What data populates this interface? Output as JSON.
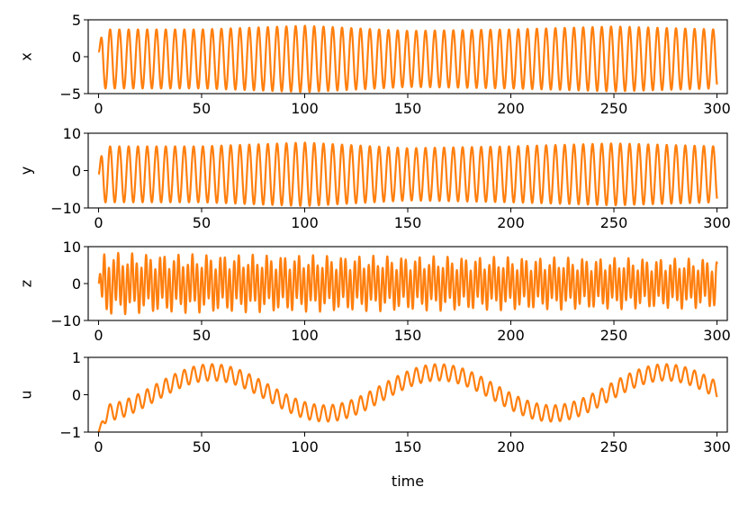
{
  "chart_data": [
    {
      "type": "line",
      "ylabel": "x",
      "xlabel": "",
      "xlim": [
        -5,
        305
      ],
      "ylim": [
        -5,
        5
      ],
      "xticks": [
        0,
        50,
        100,
        150,
        200,
        250,
        300
      ],
      "yticks": [
        -5,
        0,
        5
      ],
      "series": [
        {
          "color": "#ff7f0e",
          "x_range": [
            0,
            300
          ],
          "oscillation_period": 4.5,
          "envelope": [
            [
              0,
              4.0
            ],
            [
              50,
              4.0
            ],
            [
              100,
              4.5
            ],
            [
              150,
              3.8
            ],
            [
              200,
              4.0
            ],
            [
              250,
              4.4
            ],
            [
              300,
              4.0
            ]
          ],
          "center": -0.3,
          "start_value": 0.7
        }
      ]
    },
    {
      "type": "line",
      "ylabel": "y",
      "xlabel": "",
      "xlim": [
        -5,
        305
      ],
      "ylim": [
        -10,
        10
      ],
      "xticks": [
        0,
        50,
        100,
        150,
        200,
        250,
        300
      ],
      "yticks": [
        -10,
        0,
        10
      ],
      "series": [
        {
          "color": "#ff7f0e",
          "x_range": [
            0,
            300
          ],
          "oscillation_period": 4.5,
          "envelope": [
            [
              0,
              7.5
            ],
            [
              50,
              7.5
            ],
            [
              100,
              8.5
            ],
            [
              150,
              7.0
            ],
            [
              200,
              7.5
            ],
            [
              250,
              8.3
            ],
            [
              300,
              7.5
            ]
          ],
          "center": -1.0,
          "start_value": -1.0
        }
      ]
    },
    {
      "type": "line",
      "ylabel": "z",
      "xlabel": "",
      "xlim": [
        -5,
        305
      ],
      "ylim": [
        -10,
        10
      ],
      "xticks": [
        0,
        50,
        100,
        150,
        200,
        250,
        300
      ],
      "yticks": [
        -10,
        0,
        10
      ],
      "series": [
        {
          "color": "#ff7f0e",
          "x_range": [
            0,
            300
          ],
          "oscillation_period": 2.25,
          "envelope": [
            [
              0,
              6.5
            ],
            [
              20,
              6.0
            ],
            [
              300,
              5.0
            ]
          ],
          "center": 0.0,
          "start_value": 0.0
        }
      ]
    },
    {
      "type": "line",
      "ylabel": "u",
      "xlabel": "time",
      "xlim": [
        -5,
        305
      ],
      "ylim": [
        -1,
        1
      ],
      "xticks": [
        0,
        50,
        100,
        150,
        200,
        250,
        300
      ],
      "yticks": [
        -1,
        0,
        1
      ],
      "series": [
        {
          "color": "#ff7f0e",
          "x_range": [
            0,
            300
          ],
          "oscillation_period": 4.5,
          "slow_period": 110,
          "slow_amplitude": 0.55,
          "slow_center": 0.05,
          "slow_phase_min_at": 0,
          "fast_amplitude": 0.22,
          "start_value": -1.0
        }
      ]
    }
  ]
}
